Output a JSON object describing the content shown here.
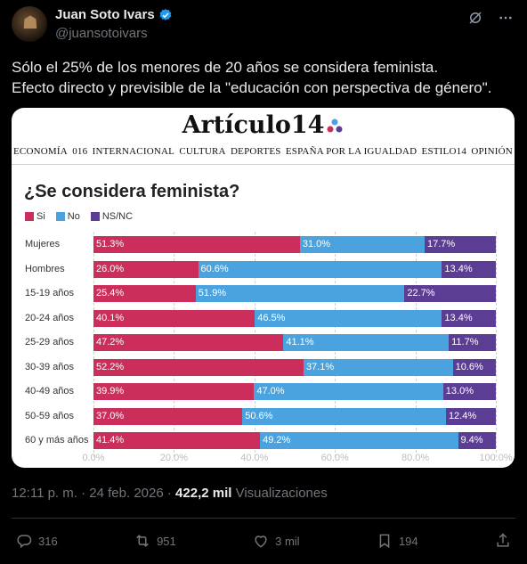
{
  "author": {
    "name": "Juan Soto Ivars",
    "handle": "@juansotoivars"
  },
  "tweet": {
    "line1": "Sólo el 25% de los menores de 20 años se considera feminista.",
    "line2": "Efecto directo y previsible de la \"educación con perspectiva de género\"."
  },
  "card": {
    "logo_text": "Artículo14",
    "menu": [
      "ECONOMÍA",
      "016",
      "INTERNACIONAL",
      "CULTURA",
      "DEPORTES",
      "ESPAÑA POR LA IGUALDAD",
      "ESTILO14",
      "OPINIÓN"
    ]
  },
  "chart_data": {
    "type": "bar",
    "orientation": "horizontal",
    "stacked": true,
    "title": "¿Se considera feminista?",
    "categories": [
      "Mujeres",
      "Hombres",
      "15-19 años",
      "20-24 años",
      "25-29 años",
      "30-39 años",
      "40-49 años",
      "50-59 años",
      "60 y más años"
    ],
    "series": [
      {
        "name": "Si",
        "color": "#cc2e5c",
        "values": [
          51.3,
          26.0,
          25.4,
          40.1,
          47.2,
          52.2,
          39.9,
          37.0,
          41.4
        ]
      },
      {
        "name": "No",
        "color": "#4aa3df",
        "values": [
          31.0,
          60.6,
          51.9,
          46.5,
          41.1,
          37.1,
          47.0,
          50.6,
          49.2
        ]
      },
      {
        "name": "NS/NC",
        "color": "#5c3d94",
        "values": [
          17.7,
          13.4,
          22.7,
          13.4,
          11.7,
          10.6,
          13.0,
          12.4,
          9.4
        ]
      }
    ],
    "xticks": [
      "0.0%",
      "20.0%",
      "40.0%",
      "60.0%",
      "80.0%",
      "100.0%"
    ],
    "xlim": [
      0,
      100
    ],
    "legend_position": "top-left",
    "grid": true
  },
  "meta": {
    "time": "12:11 p. m.",
    "sep1": "·",
    "date": "24 feb. 2026",
    "sep2": "·",
    "views_count": "422,2 mil",
    "views_label": "Visualizaciones"
  },
  "actions": {
    "replies": "316",
    "reposts": "951",
    "likes": "3 mil",
    "bookmarks": "194"
  },
  "icons": [
    "verified-badge-icon",
    "grok-icon",
    "more-icon",
    "reply-icon",
    "repost-icon",
    "like-icon",
    "bookmark-icon",
    "share-icon"
  ]
}
